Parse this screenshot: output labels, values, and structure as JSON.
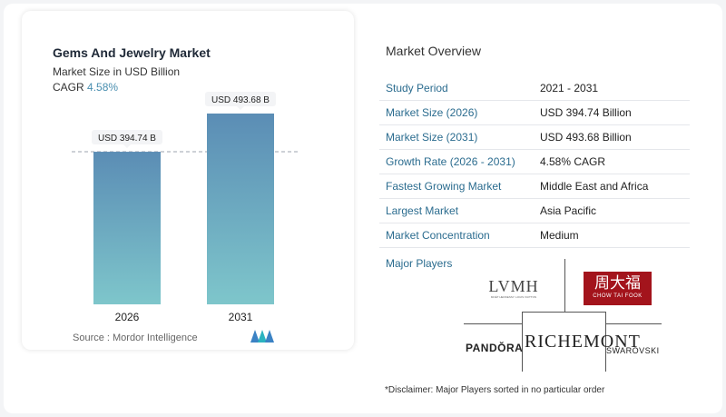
{
  "chart": {
    "title": "Gems And Jewelry Market",
    "subtitle": "Market Size in USD Billion",
    "cagr_label": "CAGR",
    "cagr_value": "4.58%",
    "source": "Source :  Mordor Intelligence"
  },
  "chart_data": {
    "type": "bar",
    "categories": [
      "2026",
      "2031"
    ],
    "values": [
      394.74,
      493.68
    ],
    "data_labels": [
      "USD 394.74 B",
      "USD 493.68 B"
    ],
    "reference_line": 394.74,
    "ylim": [
      0,
      550
    ],
    "grid": false,
    "bar_color_top": "#5b8db5",
    "bar_color_bottom": "#7ec6cb"
  },
  "overview": {
    "title": "Market Overview",
    "rows": [
      {
        "key": "Study Period",
        "value": "2021 - 2031"
      },
      {
        "key": "Market Size (2026)",
        "value": "USD 394.74 Billion"
      },
      {
        "key": "Market Size (2031)",
        "value": "USD 493.68 Billion"
      },
      {
        "key": "Growth Rate (2026 - 2031)",
        "value": "4.58% CAGR"
      },
      {
        "key": "Fastest Growing Market",
        "value": "Middle East and Africa"
      },
      {
        "key": "Largest Market",
        "value": "Asia Pacific"
      },
      {
        "key": "Market Concentration",
        "value": "Medium"
      }
    ]
  },
  "players": {
    "label": "Major Players",
    "lvmh": "LVMH",
    "lvmh_sub": "MOËT HENNESSY. LOUIS VUITTON",
    "ctf_cn": "周大福",
    "ctf_en": "CHOW TAI FOOK",
    "pandora": "PANDŎRA",
    "richemont": "RICHEMONT",
    "swarovski": "SWAROVSKI"
  },
  "disclaimer": "*Disclaimer: Major Players sorted in no particular order",
  "colors": {
    "accent": "#2b6c8f",
    "ctf_red": "#a3141c"
  }
}
